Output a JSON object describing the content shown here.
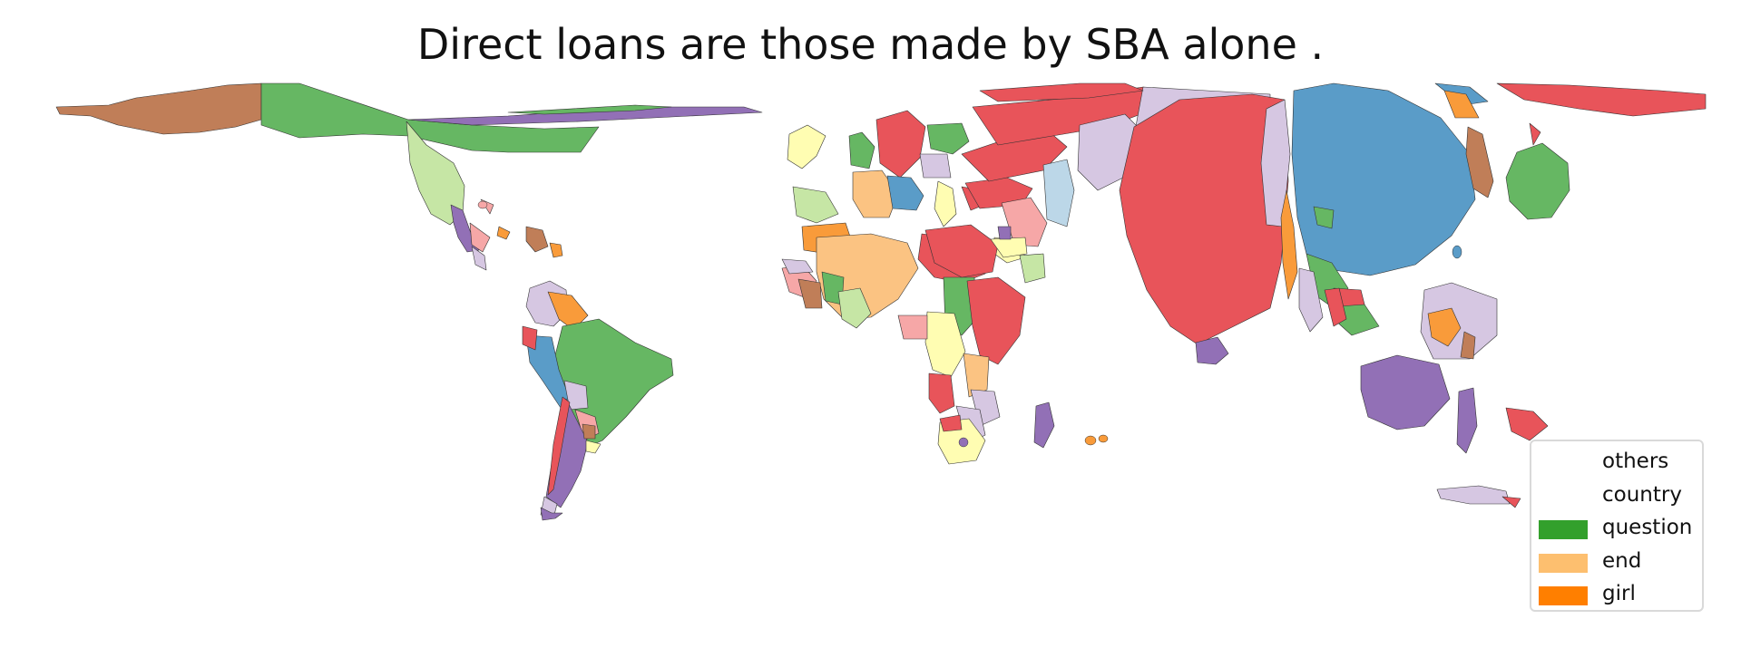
{
  "title": "Direct loans are those made by SBA alone .",
  "legend": {
    "items": [
      {
        "label": "others",
        "color": "#ffffff"
      },
      {
        "label": "country",
        "color": "#ffffff"
      },
      {
        "label": "question",
        "color": "#33a02c"
      },
      {
        "label": "end",
        "color": "#fdbf6f"
      },
      {
        "label": "girl",
        "color": "#ff7f00"
      }
    ]
  },
  "palette": {
    "red": "#e8545a",
    "blue": "#5a9cc8",
    "green": "#66b763",
    "light_green": "#c6e6a5",
    "brown": "#c07e58",
    "purple": "#9270b6",
    "lavender": "#d6c7e2",
    "pink": "#f6a7a7",
    "peach": "#fbc382",
    "orange": "#f99b3a",
    "yellow": "#fffdb2",
    "light_blue": "#bcd7e8"
  }
}
